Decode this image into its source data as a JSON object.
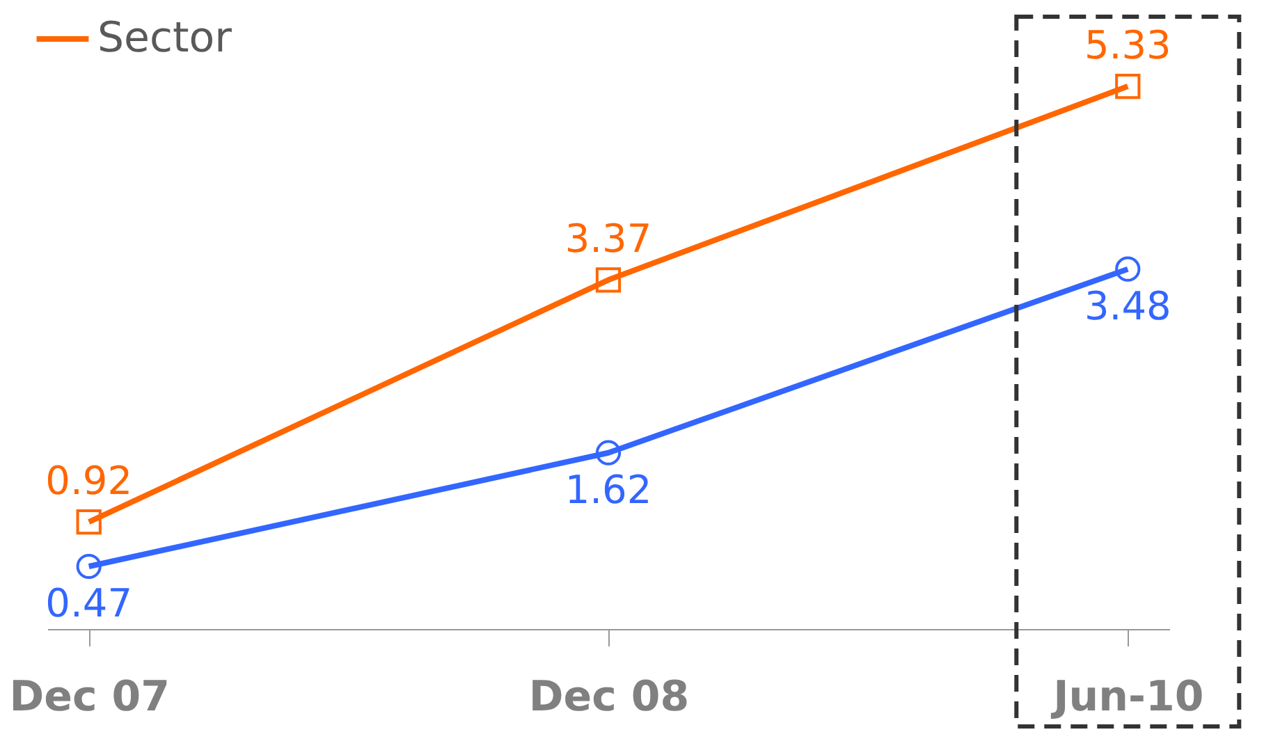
{
  "chart_data": {
    "type": "line",
    "categories": [
      "Dec 07",
      "Dec 08",
      "Jun-10"
    ],
    "series": [
      {
        "name": "Sector",
        "color": "#ff6600",
        "marker": "square",
        "values": [
          0.92,
          3.37,
          5.33
        ]
      },
      {
        "color": "#3366ff",
        "marker": "circle",
        "values": [
          0.47,
          1.62,
          3.48
        ]
      }
    ],
    "data_labels": true,
    "legend": "top left",
    "grid": false
  }
}
